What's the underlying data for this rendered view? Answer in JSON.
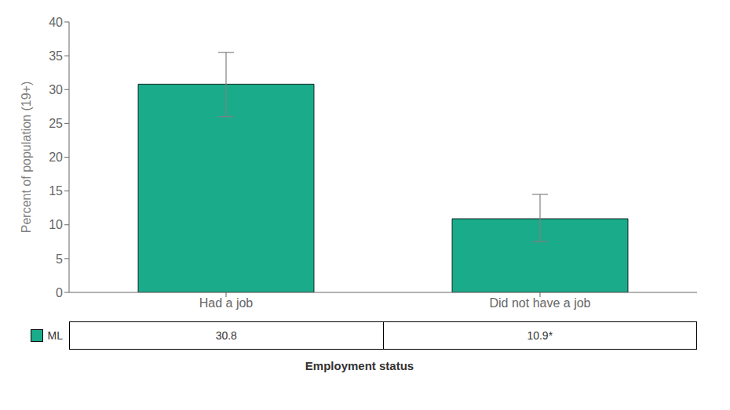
{
  "chart_data": {
    "type": "bar",
    "categories": [
      "Had a job",
      "Did not have a job"
    ],
    "series": [
      {
        "name": "ML",
        "color": "#1aab8a",
        "values": [
          30.8,
          10.9
        ],
        "error_lower": [
          26.0,
          7.5
        ],
        "error_upper": [
          35.5,
          14.5
        ]
      }
    ],
    "ylabel": "Percent of population (19+)",
    "xlabel": "Employment status",
    "ylim": [
      0,
      40
    ],
    "yticks": [
      0,
      5,
      10,
      15,
      20,
      25,
      30,
      35,
      40
    ],
    "grid": false,
    "table": [
      "30.8",
      "10.9*"
    ]
  }
}
